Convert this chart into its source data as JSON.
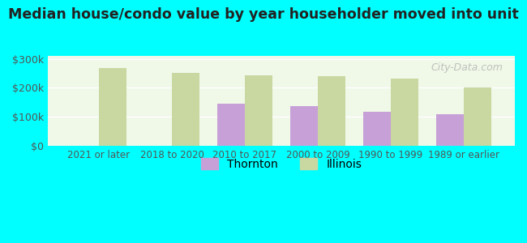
{
  "title": "Median house/condo value by year householder moved into unit",
  "categories": [
    "2021 or later",
    "2018 to 2020",
    "2010 to 2017",
    "2000 to 2009",
    "1990 to 1999",
    "1989 or earlier"
  ],
  "thornton_values": [
    null,
    null,
    145000,
    138000,
    118000,
    108000
  ],
  "illinois_values": [
    268000,
    252000,
    242000,
    240000,
    232000,
    200000
  ],
  "thornton_color": "#c8a0d8",
  "illinois_color": "#c8d8a0",
  "background_color": "#00ffff",
  "plot_bg_color": "#f0f8e8",
  "ylim": [
    0,
    310000
  ],
  "yticks": [
    0,
    100000,
    200000,
    300000
  ],
  "ytick_labels": [
    "$0",
    "$100k",
    "$200k",
    "$300k"
  ],
  "bar_width": 0.38,
  "legend_labels": [
    "Thornton",
    "Illinois"
  ],
  "watermark": "City-Data.com"
}
